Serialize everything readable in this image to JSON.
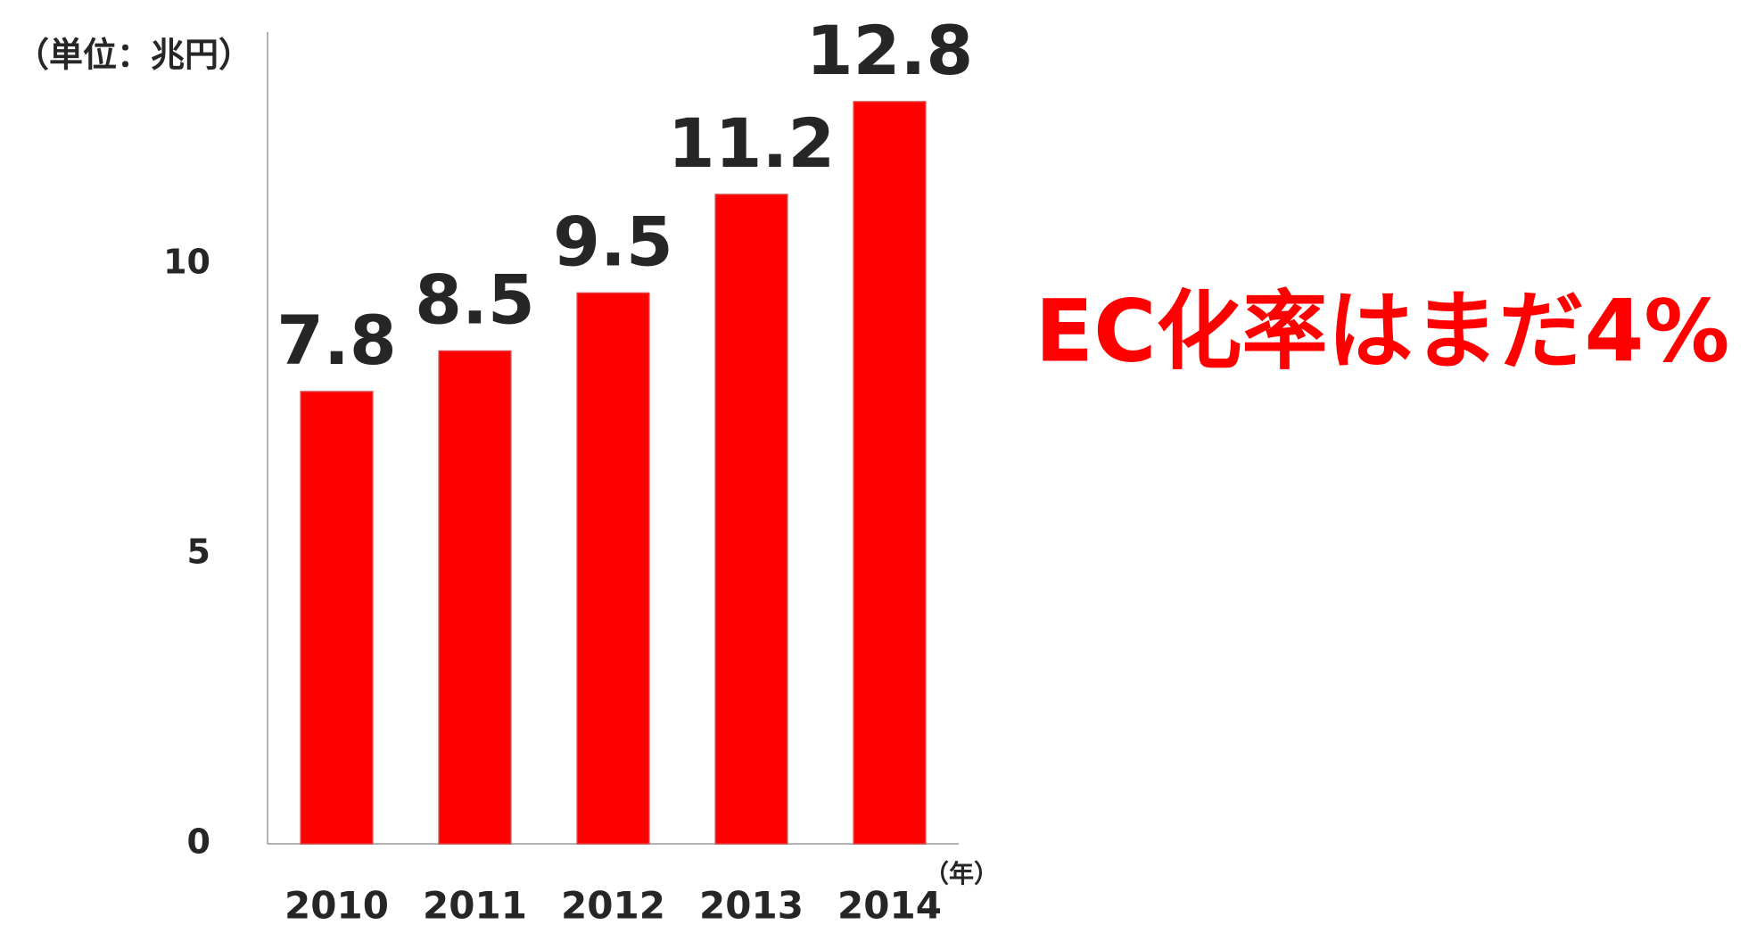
{
  "chart_data": {
    "type": "bar",
    "y_unit_label": "（単位：兆円）",
    "x_unit_label": "（年）",
    "annotation": "EC化率はまだ4%",
    "categories": [
      "2010",
      "2011",
      "2012",
      "2013",
      "2014"
    ],
    "values": [
      7.8,
      8.5,
      9.5,
      11.2,
      12.8
    ],
    "color": "#ff0000",
    "ylim": [
      0,
      14
    ],
    "yticks": [
      0,
      5,
      10
    ],
    "grid": false
  }
}
